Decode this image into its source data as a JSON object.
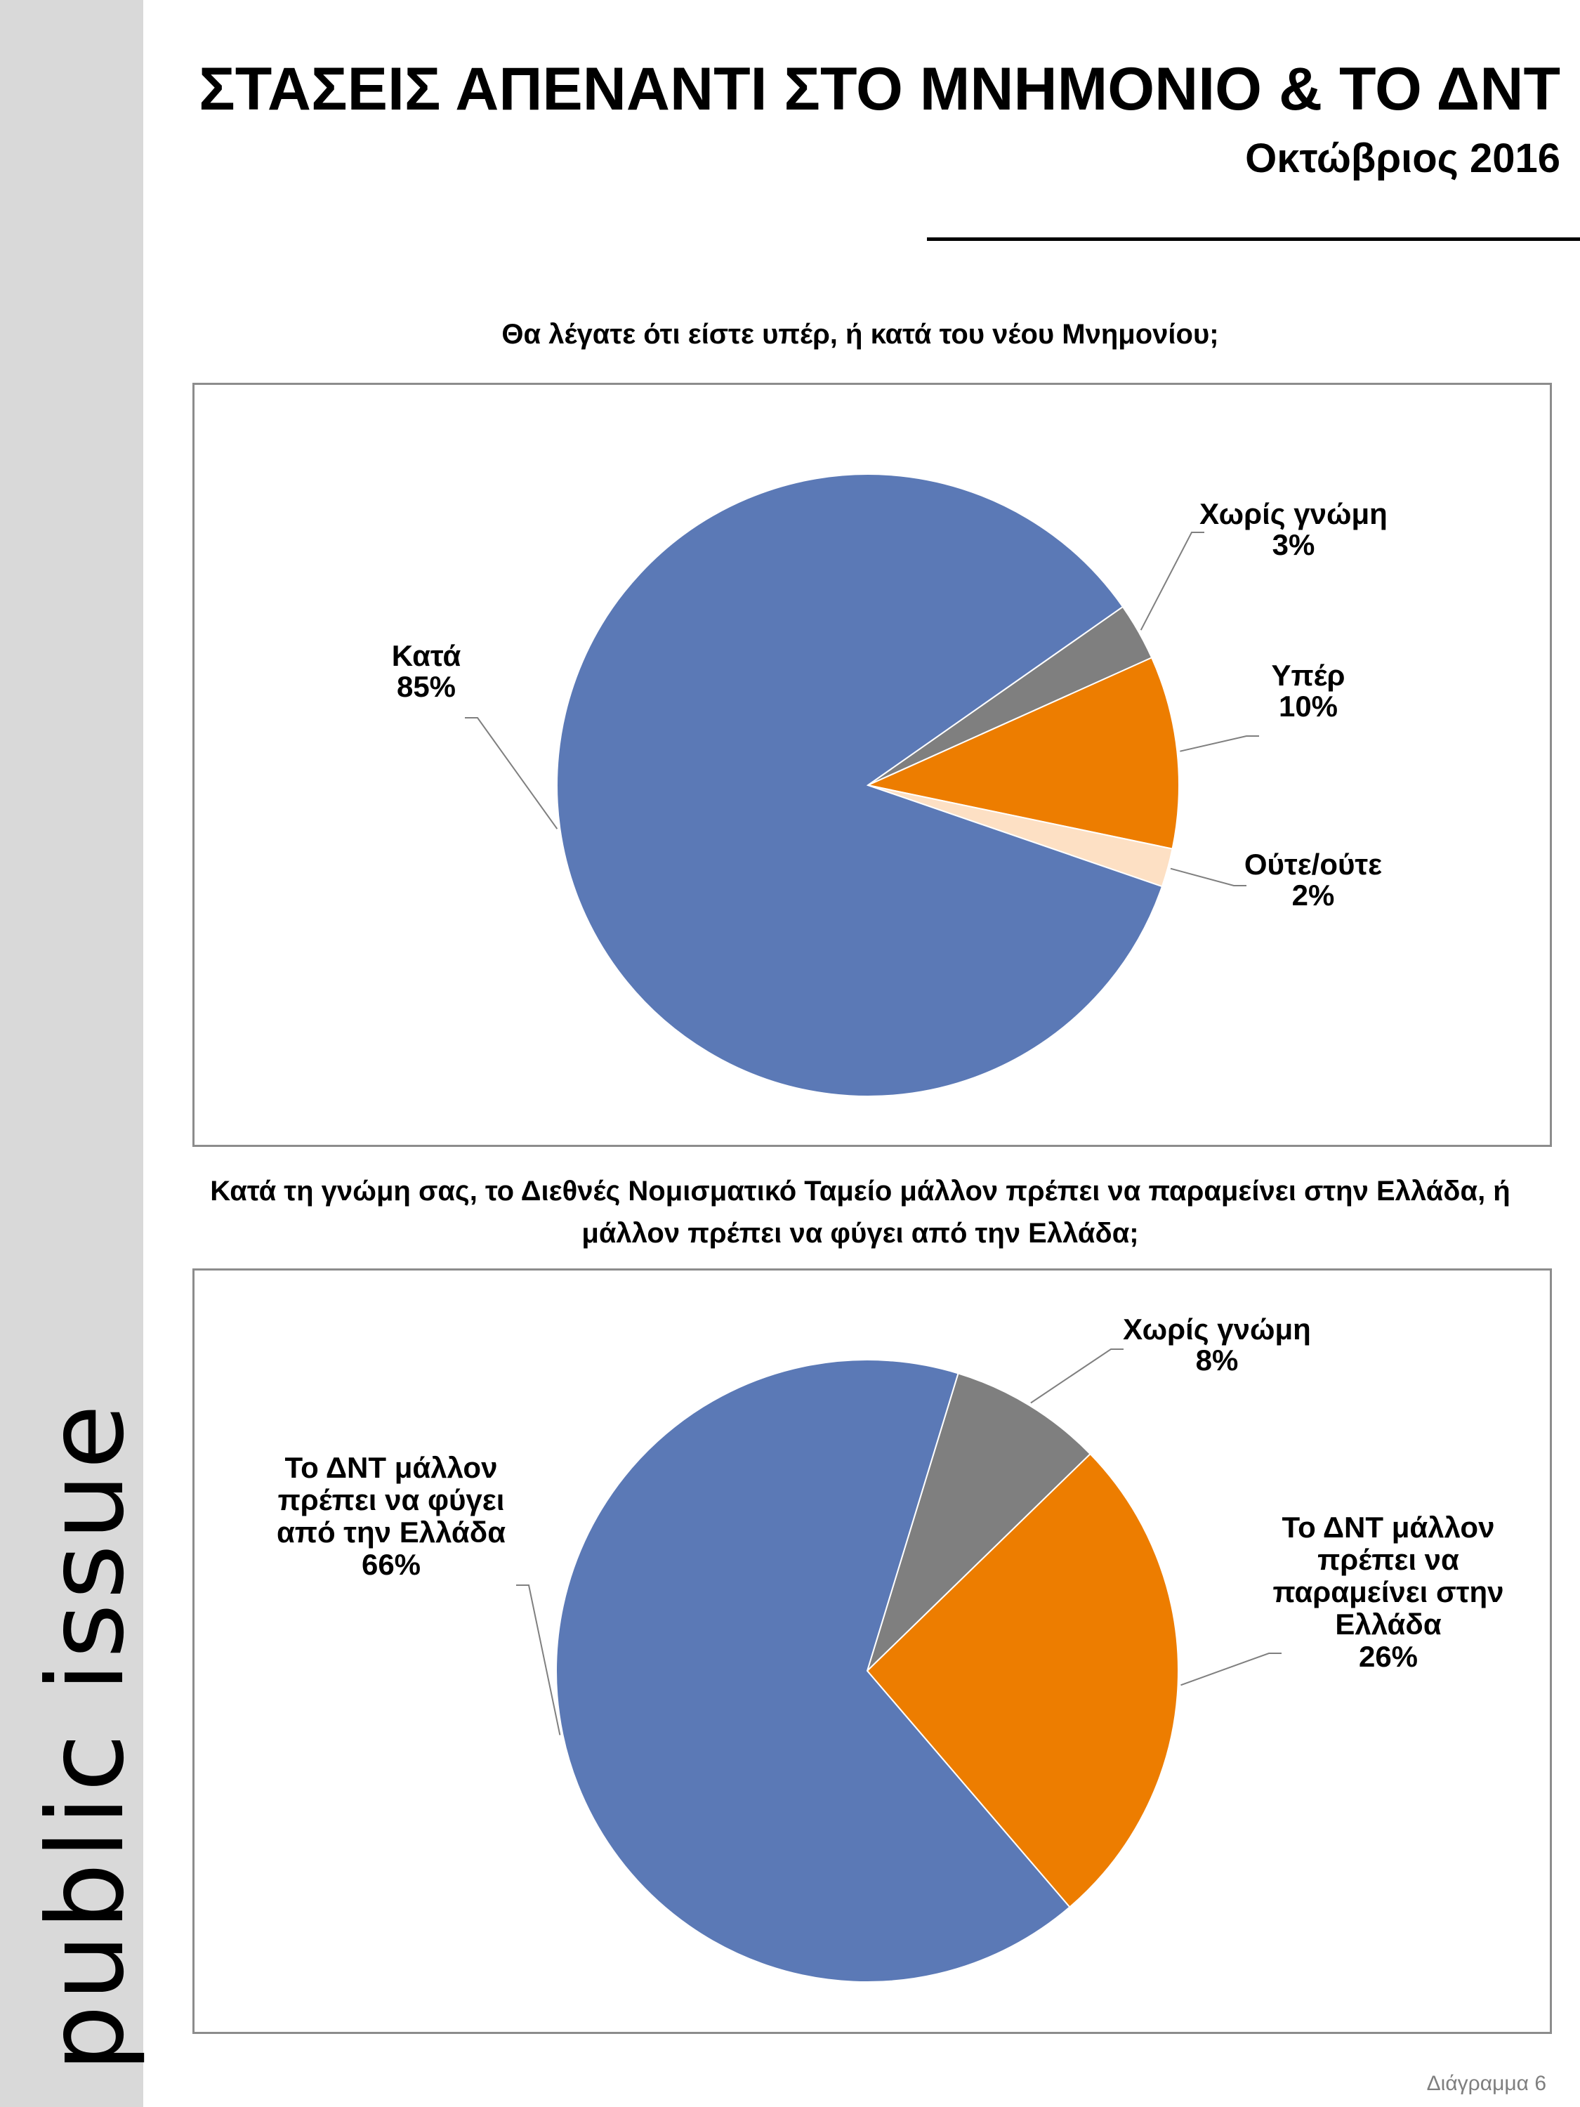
{
  "brand": "public issue",
  "title": "ΣΤΑΣΕΙΣ ΑΠΕΝΑΝΤΙ ΣΤΟ ΜΝΗΜΟΝΙΟ & ΤΟ ΔΝΤ",
  "subtitle": "Οκτώβριος 2016",
  "footer": "Διάγραμμα 6",
  "chart_data": [
    {
      "type": "pie",
      "title": "Θα λέγατε ότι είστε υπέρ, ή κατά του νέου Μνημονίου;",
      "slices": [
        {
          "label": "Χωρίς γνώμη",
          "value": 3,
          "value_label": "3%",
          "color": "#7f7f7f"
        },
        {
          "label": "Υπέρ",
          "value": 10,
          "value_label": "10%",
          "color": "#ed7d00"
        },
        {
          "label": "Ούτε/ούτε",
          "value": 2,
          "value_label": "2%",
          "color": "#fde0c4"
        },
        {
          "label": "Κατά",
          "value": 85,
          "value_label": "85%",
          "color": "#5b79b6"
        }
      ]
    },
    {
      "type": "pie",
      "title": "Κατά τη γνώμη σας, το Διεθνές Νομισματικό Ταμείο μάλλον πρέπει να παραμείνει στην Ελλάδα, ή μάλλον πρέπει να φύγει από την Ελλάδα;",
      "slices": [
        {
          "label": "Χωρίς γνώμη",
          "value": 8,
          "value_label": "8%",
          "color": "#7f7f7f"
        },
        {
          "label": "Το ΔΝΤ μάλλον πρέπει να παραμείνει στην Ελλάδα",
          "value": 26,
          "value_label": "26%",
          "color": "#ed7d00"
        },
        {
          "label": "Το ΔΝΤ μάλλον πρέπει να φύγει από την Ελλάδα",
          "value": 66,
          "value_label": "66%",
          "color": "#5b79b6"
        }
      ]
    }
  ]
}
